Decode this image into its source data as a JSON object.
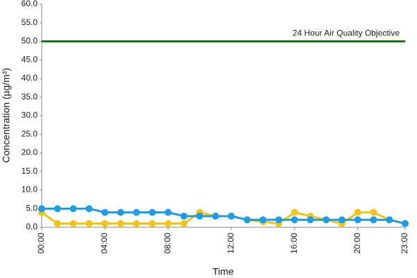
{
  "chart_data": {
    "type": "line",
    "y_label": "Concentration (µg/m³)",
    "x_label": "Time",
    "categories": [
      "00:00",
      null,
      null,
      null,
      "04:00",
      null,
      null,
      null,
      "08:00",
      null,
      null,
      null,
      "12:00",
      null,
      null,
      null,
      "16:00",
      null,
      null,
      null,
      "20:00",
      null,
      null,
      "23:00"
    ],
    "series": [
      {
        "color": "#f0c419",
        "values": [
          4,
          1,
          1,
          1,
          1,
          1,
          1,
          1,
          1,
          1,
          4,
          3,
          3,
          2,
          1.5,
          1,
          4,
          3,
          2,
          1,
          4,
          4,
          2,
          1
        ]
      },
      {
        "color": "#1e9be9",
        "values": [
          5,
          5,
          5,
          5,
          4,
          4,
          4,
          4,
          4,
          3,
          3,
          3,
          3,
          2,
          2,
          2,
          2,
          2,
          2,
          2,
          2,
          2,
          2,
          1
        ]
      }
    ],
    "reference_line": {
      "value": 50,
      "label": "24 Hour Air Quality Objective",
      "color": "#1a7a1a"
    },
    "ylim": [
      0,
      60
    ],
    "yticks": [
      {
        "value": 0,
        "label": "0.0"
      },
      {
        "value": 5,
        "label": "5.0"
      },
      {
        "value": 10,
        "label": "10.0"
      },
      {
        "value": 15,
        "label": "15.0"
      },
      {
        "value": 20,
        "label": "20.0"
      },
      {
        "value": 25,
        "label": "25.0"
      },
      {
        "value": 30,
        "label": "30.0"
      },
      {
        "value": 35,
        "label": "35.0"
      },
      {
        "value": 40,
        "label": "40.0"
      },
      {
        "value": 45,
        "label": "45.0"
      },
      {
        "value": 50,
        "label": "50.0"
      },
      {
        "value": 55,
        "label": "55.0"
      },
      {
        "value": 60,
        "label": "60.0"
      }
    ]
  }
}
